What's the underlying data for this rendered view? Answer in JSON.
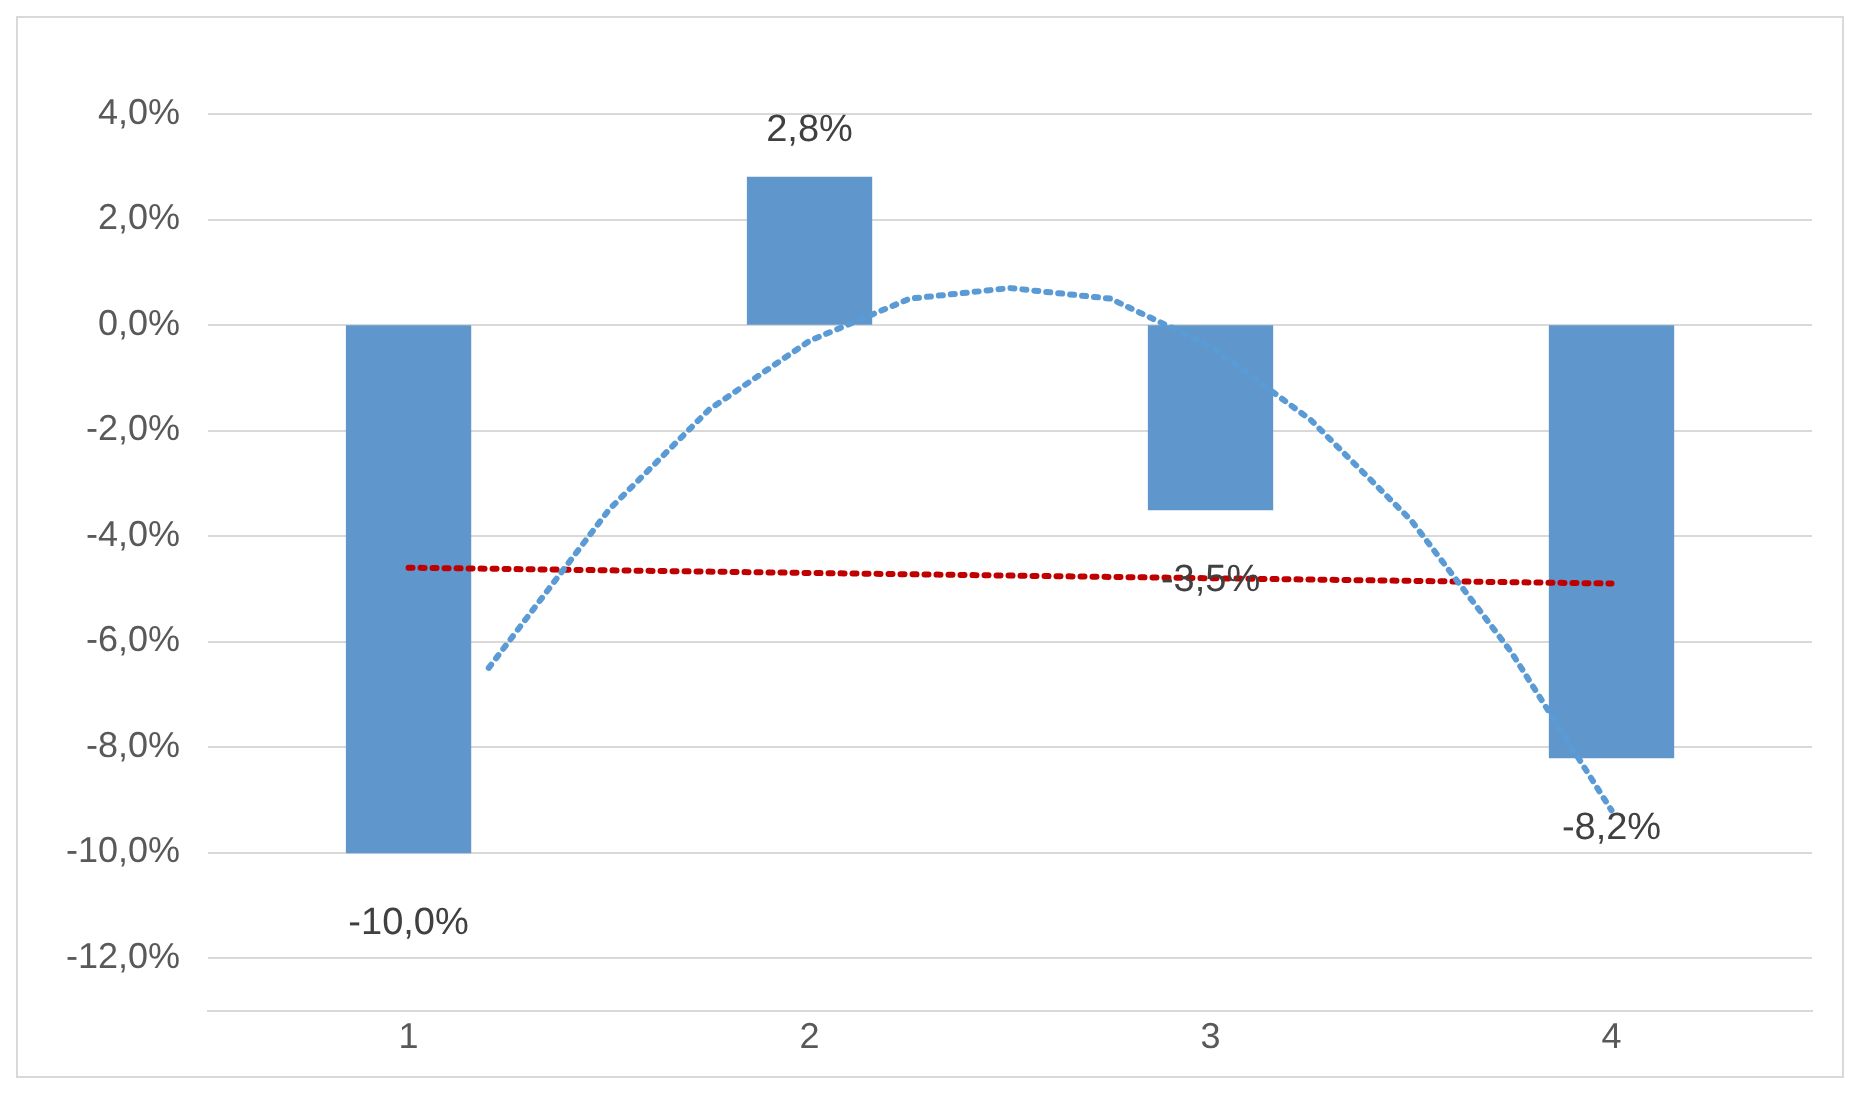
{
  "chart_data": {
    "type": "bar",
    "x": [
      1,
      2,
      3,
      4
    ],
    "xlim": [
      0.5,
      4.5
    ],
    "xticks": [
      1,
      2,
      3,
      4
    ],
    "ylim": [
      -13,
      4
    ],
    "yticks": [
      {
        "value": -12,
        "label": "-12,0%"
      },
      {
        "value": -10,
        "label": "-10,0%"
      },
      {
        "value": -8,
        "label": "-8,0%"
      },
      {
        "value": -6,
        "label": "-6,0%"
      },
      {
        "value": -4,
        "label": "-4,0%"
      },
      {
        "value": -2,
        "label": "-2,0%"
      },
      {
        "value": 0,
        "label": "0,0%"
      },
      {
        "value": 2,
        "label": "2,0%"
      },
      {
        "value": 4,
        "label": "4,0%"
      }
    ],
    "grid": "y",
    "legend": false,
    "marker": "none",
    "series": [
      {
        "color": "#5f96cb",
        "values": [
          -10.0,
          2.8,
          -3.5,
          -8.2
        ],
        "value_labels": [
          "-10,0%",
          "2,8%",
          "-3,5%",
          "-8,2%"
        ]
      },
      {
        "type": "line",
        "line_style": "dotted",
        "color": "#5b9bd5",
        "x": [
          1.2,
          1.25,
          1.5,
          1.75,
          2,
          2.25,
          2.5,
          2.75,
          3,
          3.25,
          3.5,
          3.75,
          4
        ],
        "values": [
          -6.5,
          -6.0,
          -3.5,
          -1.6,
          -0.3,
          0.5,
          0.7,
          0.5,
          -0.4,
          -1.8,
          -3.7,
          -6.2,
          -9.2
        ]
      },
      {
        "type": "line",
        "line_style": "dotted",
        "color": "#c00000",
        "x": [
          1,
          4
        ],
        "values": [
          -4.6,
          -4.9
        ]
      }
    ]
  }
}
